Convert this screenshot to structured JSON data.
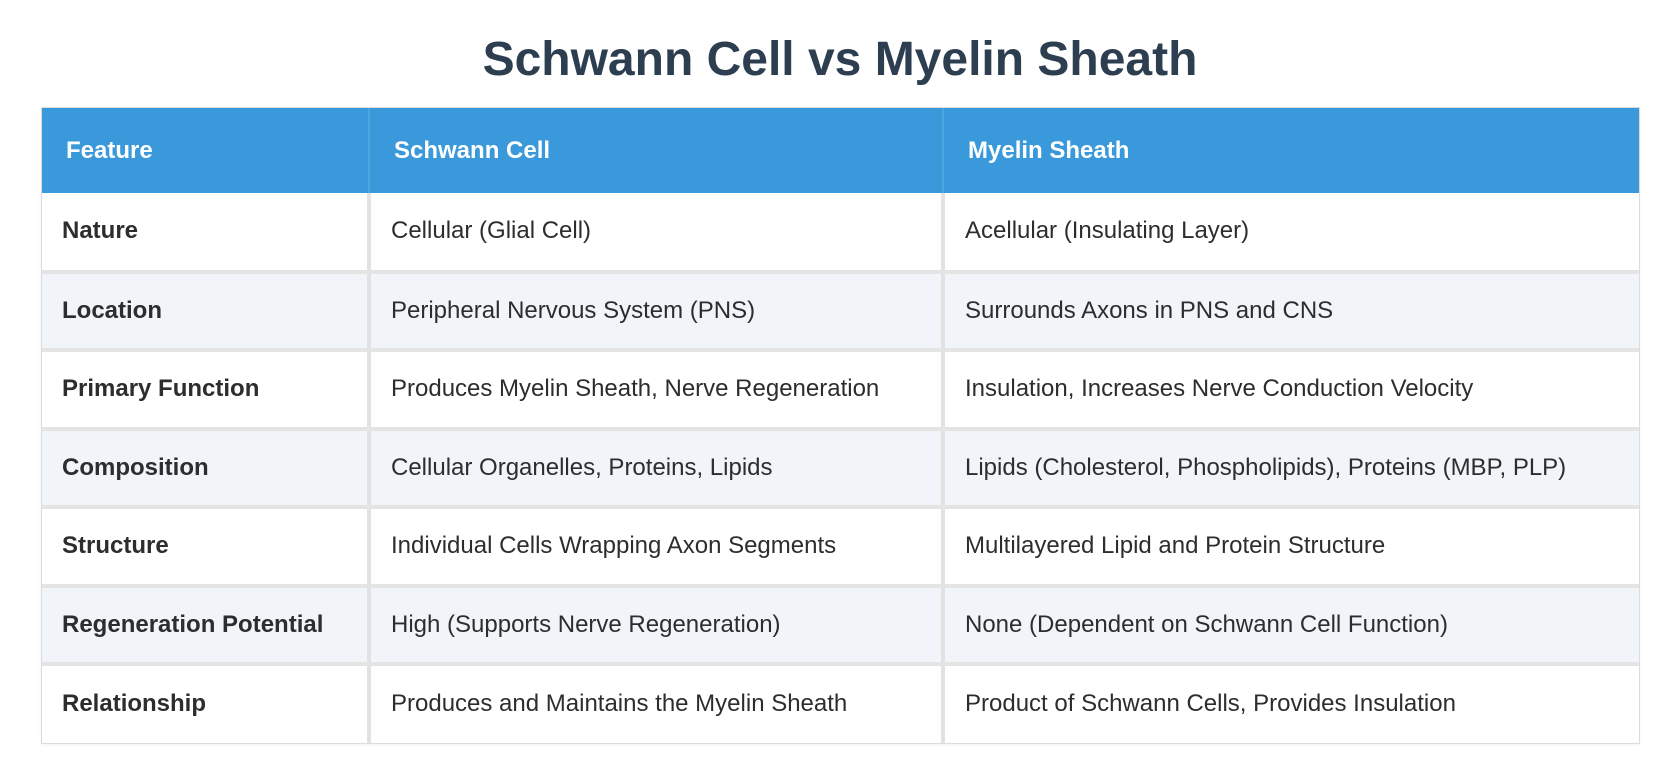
{
  "title": "Schwann Cell vs Myelin Sheath",
  "table": {
    "headers": [
      "Feature",
      "Schwann Cell",
      "Myelin Sheath"
    ],
    "rows": [
      [
        "Nature",
        "Cellular (Glial Cell)",
        "Acellular (Insulating Layer)"
      ],
      [
        "Location",
        "Peripheral Nervous System (PNS)",
        "Surrounds Axons in PNS and CNS"
      ],
      [
        "Primary Function",
        "Produces Myelin Sheath, Nerve Regeneration",
        "Insulation, Increases Nerve Conduction Velocity"
      ],
      [
        "Composition",
        "Cellular Organelles, Proteins, Lipids",
        "Lipids (Cholesterol, Phospholipids), Proteins (MBP, PLP)"
      ],
      [
        "Structure",
        "Individual Cells Wrapping Axon Segments",
        "Multilayered Lipid and Protein Structure"
      ],
      [
        "Regeneration Potential",
        "High (Supports Nerve Regeneration)",
        "None (Dependent on Schwann Cell Function)"
      ],
      [
        "Relationship",
        "Produces and Maintains the Myelin Sheath",
        "Product of Schwann Cells, Provides Insulation"
      ]
    ]
  },
  "colors": {
    "header_background": "#3a99db",
    "title_text": "#2c3e50",
    "alt_row_background": "#f1f5fa"
  }
}
